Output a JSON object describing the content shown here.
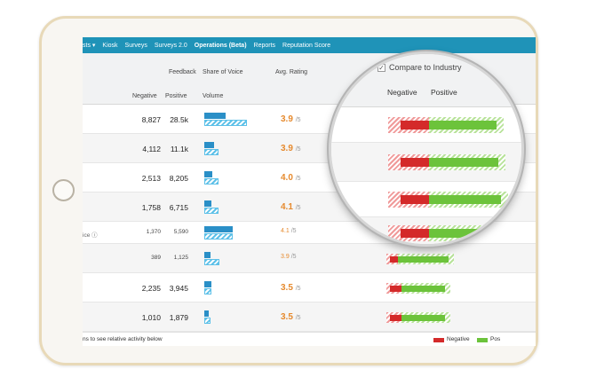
{
  "nav": {
    "items": [
      "sts ▾",
      "Kiosk",
      "Surveys",
      "Surveys 2.0",
      "Operations (Beta)",
      "Reports",
      "Reputation Score"
    ],
    "active_index": 4
  },
  "table": {
    "headers": {
      "feedback": "Feedback",
      "share_of_voice": "Share of Voice",
      "avg_rating": "Avg. Rating",
      "negative": "Negative",
      "positive": "Positive",
      "volume": "Volume"
    },
    "rows": [
      {
        "label": "",
        "negative": "8,827",
        "positive": "28.5k",
        "rating": "3.9",
        "denominator": "/5",
        "vol_solid": 0.5,
        "vol_hatch": 1.0,
        "neg": 0.3,
        "pos": 0.7,
        "small": false
      },
      {
        "label": "",
        "negative": "4,112",
        "positive": "11.1k",
        "rating": "3.9",
        "denominator": "/5",
        "vol_solid": 0.22,
        "vol_hatch": 0.34,
        "neg": 0.28,
        "pos": 0.72,
        "small": false
      },
      {
        "label": "",
        "negative": "2,513",
        "positive": "8,205",
        "rating": "4.0",
        "denominator": "/5",
        "vol_solid": 0.18,
        "vol_hatch": 0.34,
        "neg": 0.26,
        "pos": 0.74,
        "small": false
      },
      {
        "label": "",
        "negative": "1,758",
        "positive": "6,715",
        "rating": "4.1",
        "denominator": "/5",
        "vol_solid": 0.16,
        "vol_hatch": 0.34,
        "neg": 0.22,
        "pos": 0.78,
        "small": false
      },
      {
        "label": "ice ⓘ",
        "negative": "1,370",
        "positive": "5,590",
        "rating": "4.1",
        "denominator": "/5",
        "vol_solid": 0.66,
        "vol_hatch": 0.66,
        "neg": 0.2,
        "pos": 0.8,
        "small": true
      },
      {
        "label": "",
        "negative": "389",
        "positive": "1,125",
        "rating": "3.9",
        "denominator": "/5",
        "vol_solid": 0.14,
        "vol_hatch": 0.36,
        "neg": 0.26,
        "pos": 0.74,
        "small": true
      },
      {
        "label": "",
        "negative": "2,235",
        "positive": "3,945",
        "rating": "3.5",
        "denominator": "/5",
        "vol_solid": 0.16,
        "vol_hatch": 0.16,
        "neg": 0.36,
        "pos": 0.64,
        "small": false
      },
      {
        "label": "",
        "negative": "1,010",
        "positive": "1,879",
        "rating": "3.5",
        "denominator": "/5",
        "vol_solid": 0.1,
        "vol_hatch": 0.14,
        "neg": 0.36,
        "pos": 0.64,
        "small": false
      }
    ]
  },
  "footer": {
    "hint": "ns to see relative activity below",
    "legend_negative": "Negative",
    "legend_positive": "Pos"
  },
  "magnifier": {
    "compare_label": "Compare to Industry",
    "compare_checked": true,
    "negative": "Negative",
    "positive": "Positive"
  },
  "colors": {
    "nav": "#1f93b8",
    "negative": "#d42a2a",
    "positive": "#6cc33b",
    "rating": "#e68a2e",
    "volume": "#2a8fc7"
  }
}
